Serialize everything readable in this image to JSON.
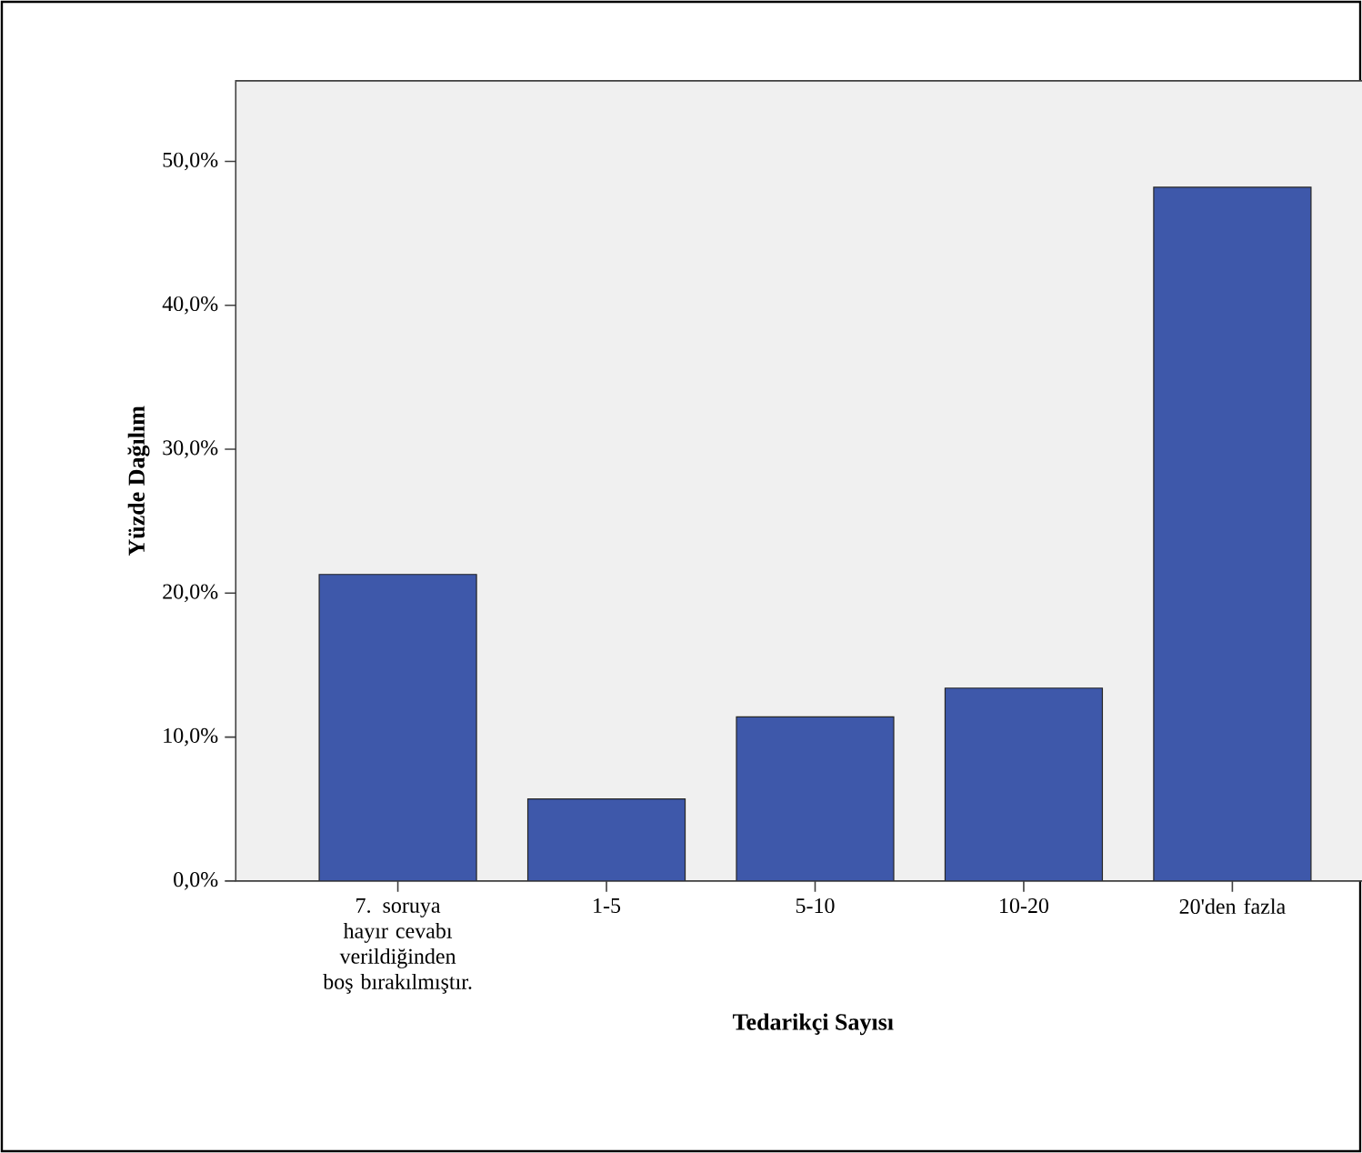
{
  "chart_data": {
    "type": "bar",
    "xlabel": "Tedarikçi Sayısı",
    "ylabel": "Yüzde Dağılım",
    "categories": [
      "7. soruya hayır cevabı verildiğinden boş bırakılmıştır.",
      "1-5",
      "5-10",
      "10-20",
      "20'den fazla"
    ],
    "values": [
      21.3,
      5.7,
      11.4,
      13.4,
      48.2
    ],
    "color": "#3e58aa",
    "ylim": [
      0,
      55.6
    ],
    "yticks": [
      {
        "value": 0,
        "label": "0,0%"
      },
      {
        "value": 10,
        "label": "10,0%"
      },
      {
        "value": 20,
        "label": "20,0%"
      },
      {
        "value": 30,
        "label": "30,0%"
      },
      {
        "value": 40,
        "label": "40,0%"
      },
      {
        "value": 50,
        "label": "50,0%"
      }
    ],
    "grid": false
  }
}
